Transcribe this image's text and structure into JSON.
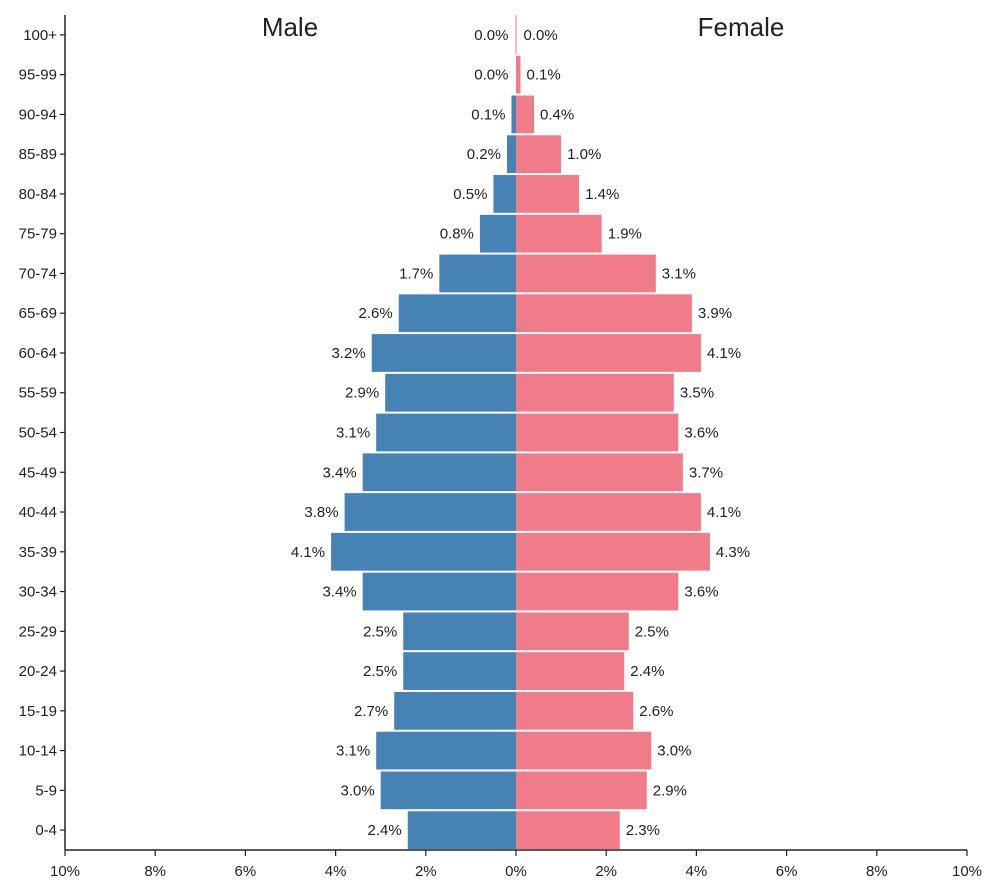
{
  "chart_data": {
    "type": "bar",
    "orientation": "horizontal",
    "layout": "population-pyramid",
    "title": "",
    "xlabel": "",
    "ylabel": "",
    "xlim": [
      -10,
      10
    ],
    "x_ticks": [
      "10%",
      "8%",
      "6%",
      "4%",
      "2%",
      "0%",
      "2%",
      "4%",
      "6%",
      "8%",
      "10%"
    ],
    "categories": [
      "100+",
      "95-99",
      "90-94",
      "85-89",
      "80-84",
      "75-79",
      "70-74",
      "65-69",
      "60-64",
      "55-59",
      "50-54",
      "45-49",
      "40-44",
      "35-39",
      "30-34",
      "25-29",
      "20-24",
      "15-19",
      "10-14",
      "5-9",
      "0-4"
    ],
    "series": [
      {
        "name": "Male",
        "color": "#4682b4",
        "values": [
          0.0,
          0.0,
          0.1,
          0.2,
          0.5,
          0.8,
          1.7,
          2.6,
          3.2,
          2.9,
          3.1,
          3.4,
          3.8,
          4.1,
          3.4,
          2.5,
          2.5,
          2.7,
          3.1,
          3.0,
          2.4
        ],
        "labels": [
          "0.0%",
          "0.0%",
          "0.1%",
          "0.2%",
          "0.5%",
          "0.8%",
          "1.7%",
          "2.6%",
          "3.2%",
          "2.9%",
          "3.1%",
          "3.4%",
          "3.8%",
          "4.1%",
          "3.4%",
          "2.5%",
          "2.5%",
          "2.7%",
          "3.1%",
          "3.0%",
          "2.4%"
        ]
      },
      {
        "name": "Female",
        "color": "#f07b89",
        "values": [
          0.0,
          0.1,
          0.4,
          1.0,
          1.4,
          1.9,
          3.1,
          3.9,
          4.1,
          3.5,
          3.6,
          3.7,
          4.1,
          4.3,
          3.6,
          2.5,
          2.4,
          2.6,
          3.0,
          2.9,
          2.3
        ],
        "labels": [
          "0.0%",
          "0.1%",
          "0.4%",
          "1.0%",
          "1.4%",
          "1.9%",
          "3.1%",
          "3.9%",
          "4.1%",
          "3.5%",
          "3.6%",
          "3.7%",
          "4.1%",
          "4.3%",
          "3.6%",
          "2.5%",
          "2.4%",
          "2.6%",
          "3.0%",
          "2.9%",
          "2.3%"
        ]
      }
    ],
    "grid": false,
    "legend": "none"
  }
}
